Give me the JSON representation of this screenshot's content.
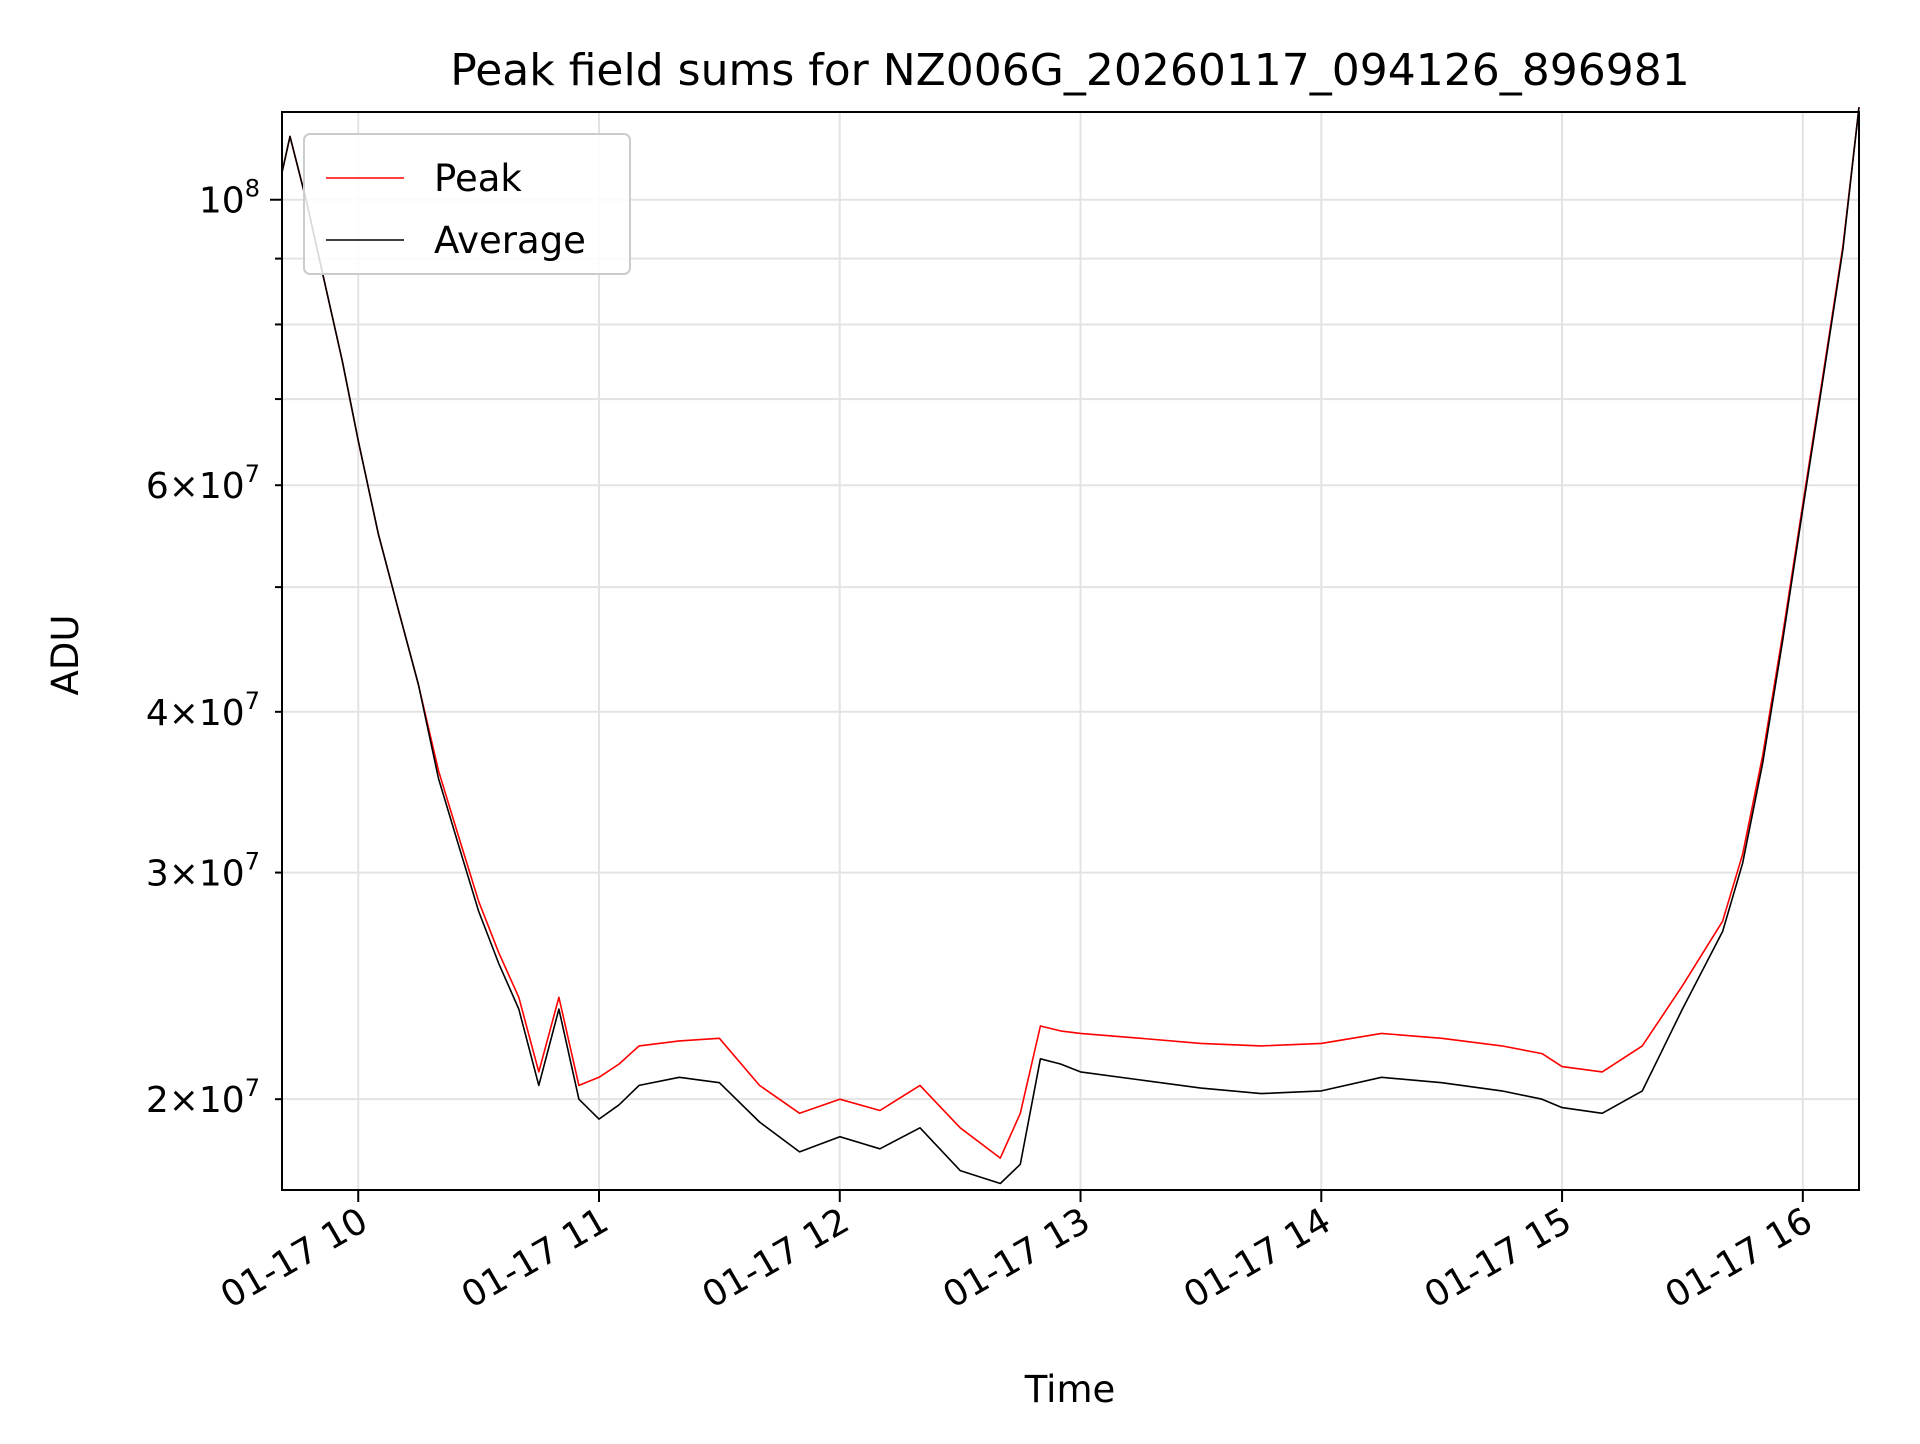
{
  "chart_data": {
    "type": "line",
    "title": "Peak field sums for NZ006G_20260117_094126_896981",
    "xlabel": "Time",
    "ylabel": "ADU",
    "yscale": "log",
    "ylim": [
      17000000,
      117000000
    ],
    "xlim": [
      "2026-01-17 09:41",
      "2026-01-17 16:14"
    ],
    "grid": true,
    "legend_position": "upper left",
    "x_ticks": [
      {
        "value": "2026-01-17 10:00",
        "label": "01-17 10"
      },
      {
        "value": "2026-01-17 11:00",
        "label": "01-17 11"
      },
      {
        "value": "2026-01-17 12:00",
        "label": "01-17 12"
      },
      {
        "value": "2026-01-17 13:00",
        "label": "01-17 13"
      },
      {
        "value": "2026-01-17 14:00",
        "label": "01-17 14"
      },
      {
        "value": "2026-01-17 15:00",
        "label": "01-17 15"
      },
      {
        "value": "2026-01-17 16:00",
        "label": "01-17 16"
      }
    ],
    "y_ticks_major": [
      {
        "value": 100000000,
        "base": "10",
        "exp": "8"
      }
    ],
    "y_ticks_minor": [
      {
        "value": 20000000,
        "mant": "2",
        "base": "10",
        "exp": "7"
      },
      {
        "value": 30000000,
        "mant": "3",
        "base": "10",
        "exp": "7"
      },
      {
        "value": 40000000,
        "mant": "4",
        "base": "10",
        "exp": "7"
      },
      {
        "value": 50000000
      },
      {
        "value": 60000000,
        "mant": "6",
        "base": "10",
        "exp": "7"
      },
      {
        "value": 70000000
      },
      {
        "value": 80000000
      },
      {
        "value": 90000000
      }
    ],
    "series": [
      {
        "name": "Peak",
        "color": "#ff0000",
        "x": [
          "2026-01-17 09:41",
          "2026-01-17 09:43",
          "2026-01-17 09:47",
          "2026-01-17 09:51",
          "2026-01-17 09:56",
          "2026-01-17 10:00",
          "2026-01-17 10:05",
          "2026-01-17 10:10",
          "2026-01-17 10:15",
          "2026-01-17 10:20",
          "2026-01-17 10:25",
          "2026-01-17 10:30",
          "2026-01-17 10:35",
          "2026-01-17 10:40",
          "2026-01-17 10:45",
          "2026-01-17 10:50",
          "2026-01-17 10:55",
          "2026-01-17 11:00",
          "2026-01-17 11:05",
          "2026-01-17 11:10",
          "2026-01-17 11:20",
          "2026-01-17 11:30",
          "2026-01-17 11:40",
          "2026-01-17 11:50",
          "2026-01-17 12:00",
          "2026-01-17 12:10",
          "2026-01-17 12:20",
          "2026-01-17 12:30",
          "2026-01-17 12:40",
          "2026-01-17 12:45",
          "2026-01-17 12:50",
          "2026-01-17 12:55",
          "2026-01-17 13:00",
          "2026-01-17 13:15",
          "2026-01-17 13:30",
          "2026-01-17 13:45",
          "2026-01-17 14:00",
          "2026-01-17 14:15",
          "2026-01-17 14:30",
          "2026-01-17 14:45",
          "2026-01-17 14:55",
          "2026-01-17 15:00",
          "2026-01-17 15:10",
          "2026-01-17 15:20",
          "2026-01-17 15:30",
          "2026-01-17 15:40",
          "2026-01-17 15:45",
          "2026-01-17 15:50",
          "2026-01-17 15:55",
          "2026-01-17 16:00",
          "2026-01-17 16:05",
          "2026-01-17 16:10",
          "2026-01-17 16:14"
        ],
        "values": [
          105000000,
          112000000,
          100000000,
          88000000,
          75000000,
          65000000,
          55000000,
          48000000,
          42000000,
          36000000,
          32000000,
          28500000,
          26000000,
          24000000,
          21000000,
          24000000,
          20500000,
          20800000,
          21300000,
          22000000,
          22200000,
          22300000,
          20500000,
          19500000,
          20000000,
          19600000,
          20500000,
          19000000,
          18000000,
          19500000,
          22800000,
          22600000,
          22500000,
          22300000,
          22100000,
          22000000,
          22100000,
          22500000,
          22300000,
          22000000,
          21700000,
          21200000,
          21000000,
          22000000,
          24500000,
          27500000,
          31000000,
          37000000,
          46000000,
          58000000,
          73000000,
          92000000,
          118000000
        ]
      },
      {
        "name": "Average",
        "color": "#000000",
        "x": [
          "2026-01-17 09:41",
          "2026-01-17 09:43",
          "2026-01-17 09:47",
          "2026-01-17 09:51",
          "2026-01-17 09:56",
          "2026-01-17 10:00",
          "2026-01-17 10:05",
          "2026-01-17 10:10",
          "2026-01-17 10:15",
          "2026-01-17 10:20",
          "2026-01-17 10:25",
          "2026-01-17 10:30",
          "2026-01-17 10:35",
          "2026-01-17 10:40",
          "2026-01-17 10:45",
          "2026-01-17 10:50",
          "2026-01-17 10:55",
          "2026-01-17 11:00",
          "2026-01-17 11:05",
          "2026-01-17 11:10",
          "2026-01-17 11:20",
          "2026-01-17 11:30",
          "2026-01-17 11:40",
          "2026-01-17 11:50",
          "2026-01-17 12:00",
          "2026-01-17 12:10",
          "2026-01-17 12:20",
          "2026-01-17 12:30",
          "2026-01-17 12:40",
          "2026-01-17 12:45",
          "2026-01-17 12:50",
          "2026-01-17 12:55",
          "2026-01-17 13:00",
          "2026-01-17 13:15",
          "2026-01-17 13:30",
          "2026-01-17 13:45",
          "2026-01-17 14:00",
          "2026-01-17 14:15",
          "2026-01-17 14:30",
          "2026-01-17 14:45",
          "2026-01-17 14:55",
          "2026-01-17 15:00",
          "2026-01-17 15:10",
          "2026-01-17 15:20",
          "2026-01-17 15:30",
          "2026-01-17 15:40",
          "2026-01-17 15:45",
          "2026-01-17 15:50",
          "2026-01-17 15:55",
          "2026-01-17 16:00",
          "2026-01-17 16:05",
          "2026-01-17 16:10",
          "2026-01-17 16:14"
        ],
        "values": [
          105000000,
          112000000,
          100000000,
          88000000,
          75000000,
          65000000,
          55000000,
          48000000,
          42000000,
          35500000,
          31500000,
          28000000,
          25500000,
          23500000,
          20500000,
          23500000,
          20000000,
          19300000,
          19800000,
          20500000,
          20800000,
          20600000,
          19200000,
          18200000,
          18700000,
          18300000,
          19000000,
          17600000,
          17200000,
          17800000,
          21500000,
          21300000,
          21000000,
          20700000,
          20400000,
          20200000,
          20300000,
          20800000,
          20600000,
          20300000,
          20000000,
          19700000,
          19500000,
          20300000,
          23500000,
          27000000,
          30500000,
          36500000,
          45500000,
          57500000,
          72500000,
          91500000,
          118000000
        ]
      }
    ]
  }
}
